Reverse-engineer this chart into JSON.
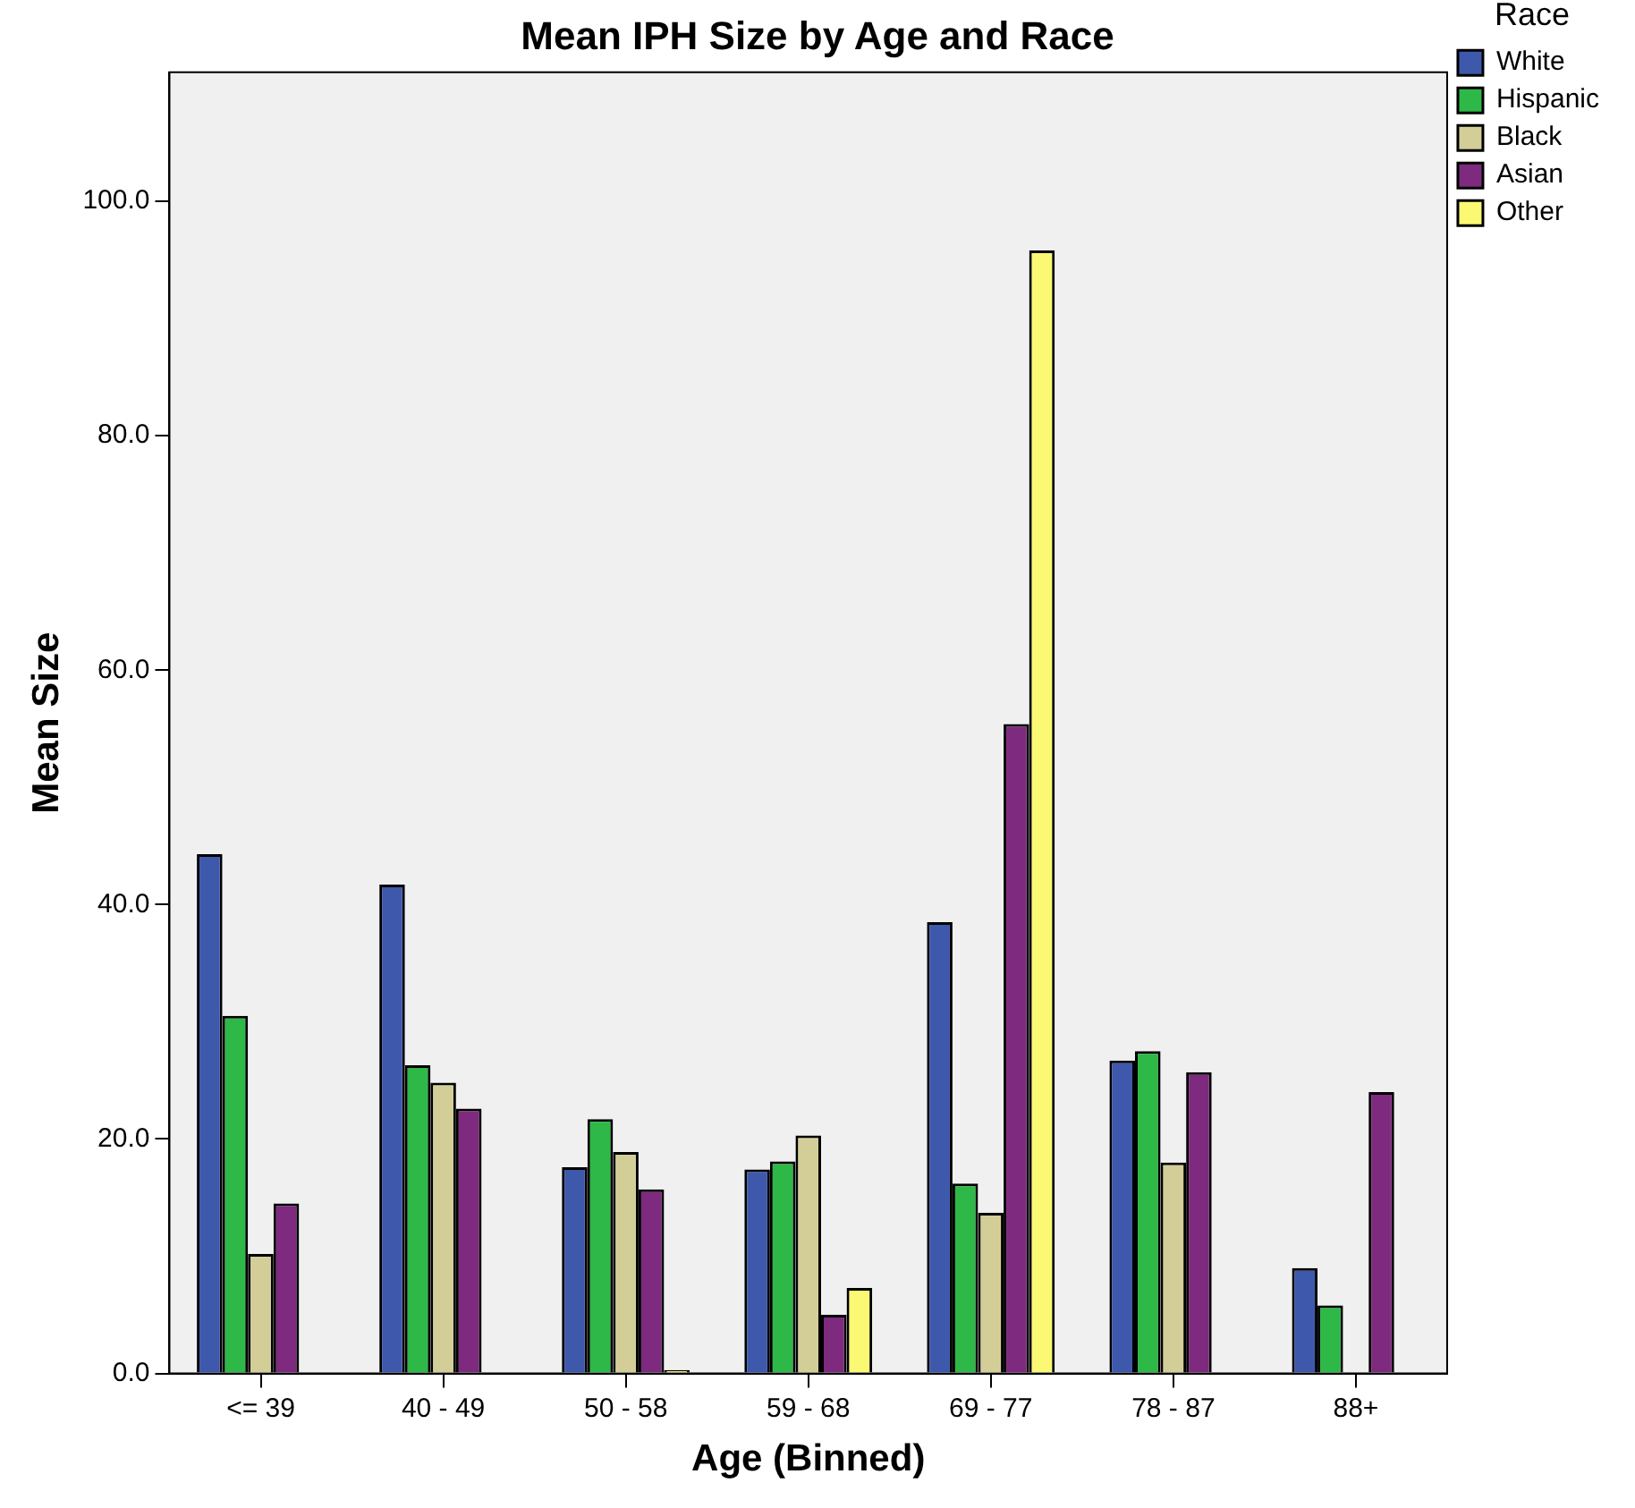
{
  "chart_data": {
    "type": "bar",
    "title": "Mean IPH Size by Age and Race",
    "xlabel": "Age (Binned)",
    "ylabel": "Mean Size",
    "legend_title": "Race",
    "legend": "right",
    "grid": false,
    "categories": [
      "<= 39",
      "40 - 49",
      "50 - 58",
      "59 - 68",
      "69 - 77",
      "78 - 87",
      "88+"
    ],
    "ylim": [
      0,
      111
    ],
    "yticks": [
      {
        "value": 0,
        "label": "0.0"
      },
      {
        "value": 20,
        "label": "20.0"
      },
      {
        "value": 40,
        "label": "40.0"
      },
      {
        "value": 60,
        "label": "60.0"
      },
      {
        "value": 80,
        "label": "80.0"
      },
      {
        "value": 100,
        "label": "100.0"
      }
    ],
    "series": [
      {
        "name": "White",
        "color": "#3e58ac",
        "values": [
          44.3,
          41.7,
          17.6,
          17.4,
          38.5,
          26.7,
          9.0
        ]
      },
      {
        "name": "Hispanic",
        "color": "#2eb848",
        "values": [
          30.5,
          26.3,
          21.7,
          18.1,
          16.2,
          27.5,
          5.8
        ]
      },
      {
        "name": "Black",
        "color": "#d3ce97",
        "values": [
          10.2,
          24.8,
          18.9,
          20.3,
          13.7,
          18.0,
          null
        ]
      },
      {
        "name": "Asian",
        "color": "#7e2a7e",
        "values": [
          14.5,
          22.6,
          15.7,
          5.0,
          55.4,
          25.7,
          24.0
        ]
      },
      {
        "name": "Other",
        "color": "#fbf873",
        "values": [
          null,
          null,
          0.3,
          7.3,
          95.8,
          null,
          null
        ]
      }
    ]
  }
}
